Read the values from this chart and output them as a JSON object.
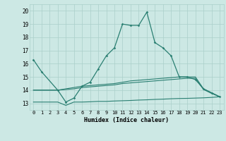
{
  "xlabel": "Humidex (Indice chaleur)",
  "x": [
    0,
    1,
    2,
    3,
    4,
    5,
    6,
    7,
    8,
    9,
    10,
    11,
    12,
    13,
    14,
    15,
    16,
    17,
    18,
    19,
    20,
    21,
    22,
    23
  ],
  "line1": [
    16.3,
    15.4,
    null,
    14.0,
    13.1,
    13.4,
    14.3,
    14.6,
    15.6,
    16.6,
    17.2,
    19.0,
    18.9,
    18.9,
    19.9,
    17.6,
    17.2,
    16.6,
    15.0,
    15.0,
    14.8,
    14.1,
    13.8,
    13.5
  ],
  "line2": [
    14.0,
    14.0,
    14.0,
    14.0,
    14.1,
    14.2,
    14.3,
    14.35,
    14.4,
    14.45,
    14.5,
    14.6,
    14.7,
    14.75,
    14.8,
    14.85,
    14.9,
    14.95,
    15.0,
    15.0,
    15.0,
    14.1,
    13.8,
    13.5
  ],
  "line3": [
    14.0,
    14.0,
    14.0,
    14.0,
    14.05,
    14.1,
    14.2,
    14.25,
    14.3,
    14.35,
    14.4,
    14.5,
    14.55,
    14.6,
    14.65,
    14.7,
    14.75,
    14.8,
    14.85,
    14.9,
    14.9,
    14.05,
    13.75,
    13.5
  ],
  "line4": [
    13.1,
    13.1,
    13.1,
    13.1,
    12.85,
    13.1,
    13.1,
    13.12,
    13.15,
    13.15,
    13.18,
    13.2,
    13.22,
    13.25,
    13.27,
    13.3,
    13.32,
    13.35,
    13.37,
    13.38,
    13.4,
    13.42,
    13.45,
    13.5
  ],
  "line_color": "#2a7f72",
  "bg_color": "#cce8e4",
  "grid_color": "#aacfca",
  "ylim": [
    12.5,
    20.5
  ],
  "yticks": [
    13,
    14,
    15,
    16,
    17,
    18,
    19,
    20
  ],
  "xlim": [
    -0.5,
    23.5
  ]
}
